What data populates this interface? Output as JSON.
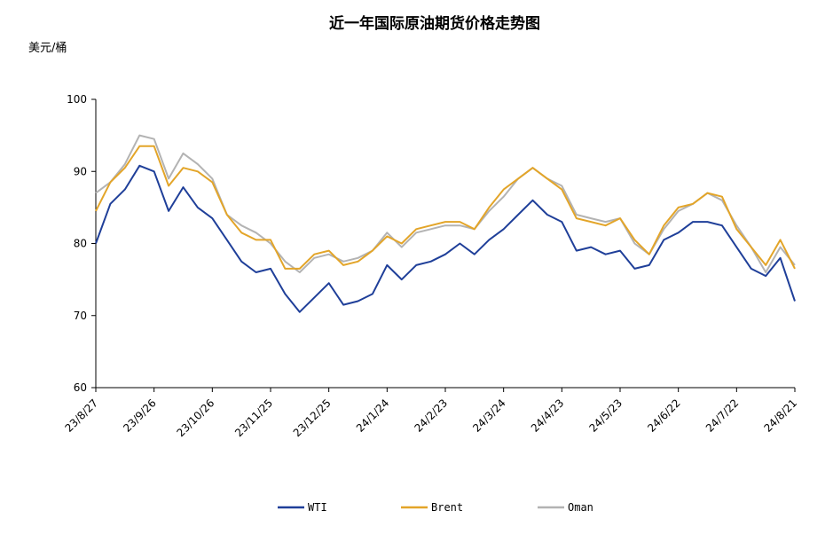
{
  "chart_data": {
    "type": "line",
    "title": "近一年国际原油期货价格走势图",
    "ylabel": "美元/桶",
    "xlabel": "",
    "ylim": [
      60,
      100
    ],
    "yticks": [
      60,
      70,
      80,
      90,
      100
    ],
    "grid": false,
    "legend_position": "bottom",
    "x": [
      "23/8/27",
      "23/9/3",
      "23/9/10",
      "23/9/17",
      "23/9/26",
      "23/10/3",
      "23/10/10",
      "23/10/17",
      "23/10/26",
      "23/11/2",
      "23/11/9",
      "23/11/16",
      "23/11/25",
      "23/12/2",
      "23/12/9",
      "23/12/16",
      "23/12/25",
      "24/1/1",
      "24/1/8",
      "24/1/15",
      "24/1/24",
      "24/1/31",
      "24/2/7",
      "24/2/14",
      "24/2/23",
      "24/3/1",
      "24/3/8",
      "24/3/15",
      "24/3/24",
      "24/3/31",
      "24/4/7",
      "24/4/14",
      "24/4/23",
      "24/4/30",
      "24/5/7",
      "24/5/14",
      "24/5/23",
      "24/5/30",
      "24/6/6",
      "24/6/13",
      "24/6/22",
      "24/6/29",
      "24/7/6",
      "24/7/13",
      "24/7/22",
      "24/7/29",
      "24/8/5",
      "24/8/12",
      "24/8/21"
    ],
    "x_tick_labels": [
      "23/8/27",
      "23/9/26",
      "23/10/26",
      "23/11/25",
      "23/12/25",
      "24/1/24",
      "24/2/23",
      "24/3/24",
      "24/4/23",
      "24/5/23",
      "24/6/22",
      "24/7/22",
      "24/8/21"
    ],
    "series": [
      {
        "name": "WTI",
        "color": "#1f3f99",
        "values": [
          80.0,
          85.5,
          87.5,
          90.8,
          90.0,
          84.5,
          87.8,
          85.0,
          83.5,
          80.5,
          77.5,
          76.0,
          76.5,
          73.0,
          70.5,
          72.5,
          74.5,
          71.5,
          72.0,
          73.0,
          77.0,
          75.0,
          77.0,
          77.5,
          78.5,
          80.0,
          78.5,
          80.5,
          82.0,
          84.0,
          86.0,
          84.0,
          83.0,
          79.0,
          79.5,
          78.5,
          79.0,
          76.5,
          77.0,
          80.5,
          81.5,
          83.0,
          83.0,
          82.5,
          79.5,
          76.5,
          75.5,
          78.0,
          72.0
        ]
      },
      {
        "name": "Brent",
        "color": "#e3a529",
        "values": [
          84.5,
          88.5,
          90.5,
          93.5,
          93.5,
          88.0,
          90.5,
          90.0,
          88.5,
          84.0,
          81.5,
          80.5,
          80.5,
          76.5,
          76.5,
          78.5,
          79.0,
          77.0,
          77.5,
          79.0,
          81.0,
          80.0,
          82.0,
          82.5,
          83.0,
          83.0,
          82.0,
          85.0,
          87.5,
          89.0,
          90.5,
          89.0,
          87.5,
          83.5,
          83.0,
          82.5,
          83.5,
          80.5,
          78.5,
          82.5,
          85.0,
          85.5,
          87.0,
          86.5,
          82.0,
          79.5,
          77.0,
          80.5,
          76.5
        ]
      },
      {
        "name": "Oman",
        "color": "#b3b3b3",
        "values": [
          87.0,
          88.5,
          91.0,
          95.0,
          94.5,
          89.0,
          92.5,
          91.0,
          89.0,
          84.0,
          82.5,
          81.5,
          80.0,
          77.5,
          76.0,
          78.0,
          78.5,
          77.5,
          78.0,
          79.0,
          81.5,
          79.5,
          81.5,
          82.0,
          82.5,
          82.5,
          82.0,
          84.5,
          86.5,
          89.0,
          90.5,
          89.0,
          88.0,
          84.0,
          83.5,
          83.0,
          83.5,
          80.0,
          78.5,
          82.0,
          84.5,
          85.5,
          87.0,
          86.0,
          82.5,
          79.5,
          76.0,
          79.5,
          77.0
        ]
      }
    ]
  }
}
